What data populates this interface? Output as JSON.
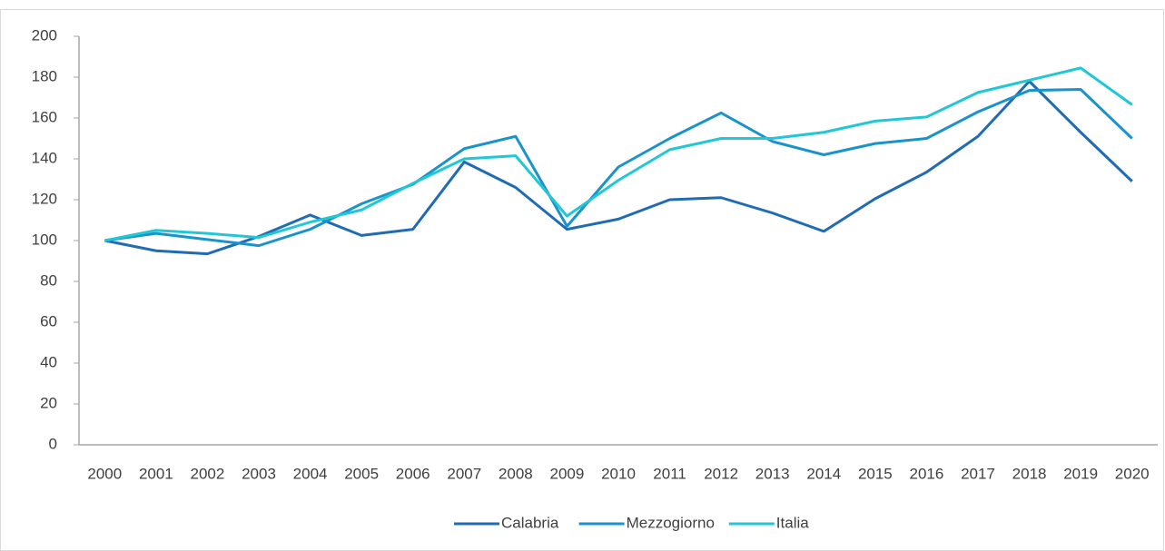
{
  "chart_data": {
    "type": "line",
    "categories": [
      "2000",
      "2001",
      "2002",
      "2003",
      "2004",
      "2005",
      "2006",
      "2007",
      "2008",
      "2009",
      "2010",
      "2011",
      "2012",
      "2013",
      "2014",
      "2015",
      "2016",
      "2017",
      "2018",
      "2019",
      "2020"
    ],
    "series": [
      {
        "name": "Calabria",
        "color": "#1f6cb5",
        "values": [
          100,
          95,
          93.5,
          102,
          112.5,
          102.5,
          105.5,
          138.5,
          126,
          105.5,
          110.5,
          120,
          121,
          113.5,
          104.5,
          120.5,
          133.5,
          151,
          178,
          153,
          129
        ]
      },
      {
        "name": "Mezzogiorno",
        "color": "#1a93cc",
        "values": [
          100,
          103.5,
          100.5,
          97.5,
          105.5,
          118,
          127.5,
          145,
          151,
          107,
          136,
          150,
          162.5,
          148.5,
          142,
          147.5,
          150,
          163,
          173.5,
          174,
          150
        ]
      },
      {
        "name": "Italia",
        "color": "#22c7d6",
        "values": [
          100,
          105,
          103.5,
          101.5,
          109,
          115,
          128,
          140,
          141.5,
          112,
          129.5,
          144.5,
          150,
          150,
          153,
          158.5,
          160.5,
          172.5,
          178.5,
          184.5,
          166.5
        ]
      }
    ],
    "ylim": [
      0,
      200
    ],
    "yticks": [
      0,
      20,
      40,
      60,
      80,
      100,
      120,
      140,
      160,
      180,
      200
    ],
    "grid": false,
    "legend": "bottom"
  }
}
